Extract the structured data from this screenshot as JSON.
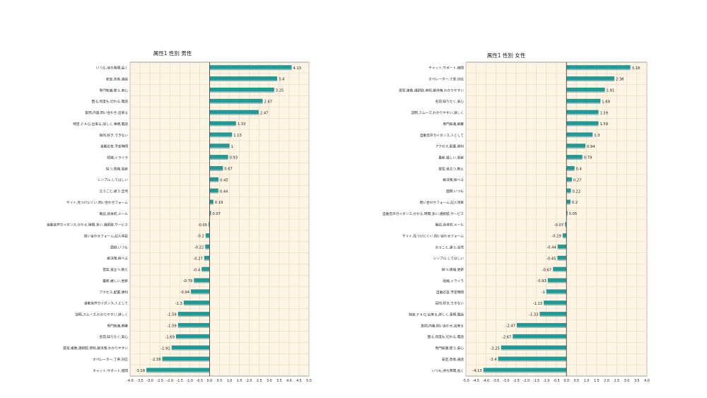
{
  "colors": {
    "bar": "#1f9a96",
    "bar_shadow": "#9fb9b7",
    "plot_bg": "#fdf4e3",
    "grid": "#e4d6bc",
    "frame": "#8a8a8a",
    "axis_zero": "#444444",
    "text": "#222222"
  },
  "chart_data": [
    {
      "type": "bar",
      "orientation": "horizontal",
      "title": "属性1 性別 男性",
      "xlim": [
        -4.0,
        5.0
      ],
      "xticks": [
        "-4.0",
        "-3.5",
        "-3.0",
        "-2.5",
        "-2.0",
        "-1.5",
        "-1.0",
        "-0.5",
        "0.0",
        "0.5",
        "1.0",
        "1.5",
        "2.0",
        "2.5",
        "3.0",
        "3.5",
        "4.0",
        "4.5",
        "5.0"
      ],
      "grid": true,
      "categories": [
        "いつも,待ち時間,長く",
        "安定,改善,通話",
        "専門知識,使う,安心",
        "困る,何度も,切れる,電話",
        "質問,内容,問い合わせ,出来る",
        "特定,ＦＡＱ,出来る,詳しく,事柄,電話",
        "目的,好き,できない",
        "自動応答,予定時間",
        "短縮,イライラ",
        "探つ,情報,更新",
        "シンプル,してほしい",
        "言うこと,違う,全然",
        "サイト,見つけにくい,問い合わせフォーム",
        "確認,具体的,メール",
        "自動音声ガイダンス,かかる,時間,多い,選択肢,サービス",
        "問い合わせフォーム,記入項目",
        "面倒,いつも",
        "解決策,探べる",
        "提案,役立つ,教え",
        "最新,嬉しい,更新",
        "アクセス,配置,便利",
        "自動音声ガイダンス,人として",
        "説明,スムーズ,わかりやすい,詳しく",
        "専門知識,網羅",
        "名前,知りたく,安心",
        "提案,複数,選択肢,参照,解決策,わかりやすい",
        "オペレーター,丁寧,対応",
        "チャット,サポート,夜間"
      ],
      "values": [
        4.13,
        3.4,
        3.25,
        2.67,
        2.47,
        1.33,
        1.13,
        1,
        0.93,
        0.67,
        0.45,
        0.44,
        0.19,
        0.07,
        -0.05,
        -0.2,
        -0.22,
        -0.27,
        -0.4,
        -0.79,
        -0.94,
        -1.3,
        -1.59,
        -1.59,
        -1.69,
        -1.91,
        -2.38,
        -3.18
      ],
      "value_labels": [
        "4.13",
        "3.4",
        "3.25",
        "2.67",
        "2.47",
        "1.33",
        "1.13",
        "1",
        "0.93",
        "0.67",
        "0.45",
        "0.44",
        "0.19",
        "0.07",
        "-0.05",
        "-0.2",
        "-0.22",
        "-0.27",
        "-0.4",
        "-0.79",
        "-0.94",
        "-1.3",
        "-1.59",
        "-1.59",
        "-1.69",
        "-1.91",
        "-2.38",
        "-3.18"
      ]
    },
    {
      "type": "bar",
      "orientation": "horizontal",
      "title": "属性1 性別 女性",
      "xlim": [
        -5.0,
        4.0
      ],
      "xticks": [
        "-5.0",
        "-4.5",
        "-4.0",
        "-3.5",
        "-3.0",
        "-2.5",
        "-2.0",
        "-1.5",
        "-1.0",
        "-0.5",
        "0.0",
        "0.5",
        "1.0",
        "1.5",
        "2.0",
        "2.5",
        "3.0",
        "3.5",
        "4.0"
      ],
      "grid": true,
      "categories": [
        "チャット,サポート,夜間",
        "オペレーター,丁寧,対応",
        "提案,複数,選択肢,参照,解決策,わかりやすい",
        "名前,知りたく,安心",
        "説明,スムーズ,わかりやすい,詳しく",
        "専門知識,網羅",
        "自動音声ガイダンス,人として",
        "アクセス,配置,便利",
        "最新,嬉しい,更新",
        "提案,役立つ,教え",
        "解決策,探べる",
        "面倒,いつも",
        "問い合わせフォーム,記入項目",
        "自動音声ガイダンス,かかる,時間,多い,選択肢,サービス",
        "確認,具体的,メール",
        "サイト,見つけにくい,問い合わせフォーム",
        "言うこと,違う,全然",
        "シンプル,してほしい",
        "探つ,情報,更新",
        "短縮,イライラ",
        "自動応答,予定時間",
        "目的,好き,できない",
        "特定,ＦＡＱ,出来る,詳しく,事柄,電話",
        "質問,内容,問い合わせ,出来る",
        "困る,何度も,切れる,電話",
        "専門知識,使う,安心",
        "安定,改善,通話",
        "いつも,待ち時間,長く"
      ],
      "values": [
        3.18,
        2.38,
        1.91,
        1.69,
        1.59,
        1.59,
        1.3,
        0.94,
        0.79,
        0.4,
        0.27,
        0.22,
        0.2,
        0.05,
        -0.07,
        -0.19,
        -0.44,
        -0.45,
        -0.67,
        -0.93,
        -1,
        -1.13,
        -1.33,
        -2.47,
        -2.67,
        -3.25,
        -3.4,
        -4.13
      ],
      "value_labels": [
        "3.18",
        "2.38",
        "1.91",
        "1.69",
        "1.59",
        "1.59",
        "1.3",
        "0.94",
        "0.79",
        "0.4",
        "0.27",
        "0.22",
        "0.2",
        "0.05",
        "-0.07",
        "-0.19",
        "-0.44",
        "-0.45",
        "-0.67",
        "-0.93",
        "-1",
        "-1.13",
        "-1.33",
        "-2.47",
        "-2.67",
        "-3.25",
        "-3.4",
        "-4.13"
      ]
    }
  ]
}
